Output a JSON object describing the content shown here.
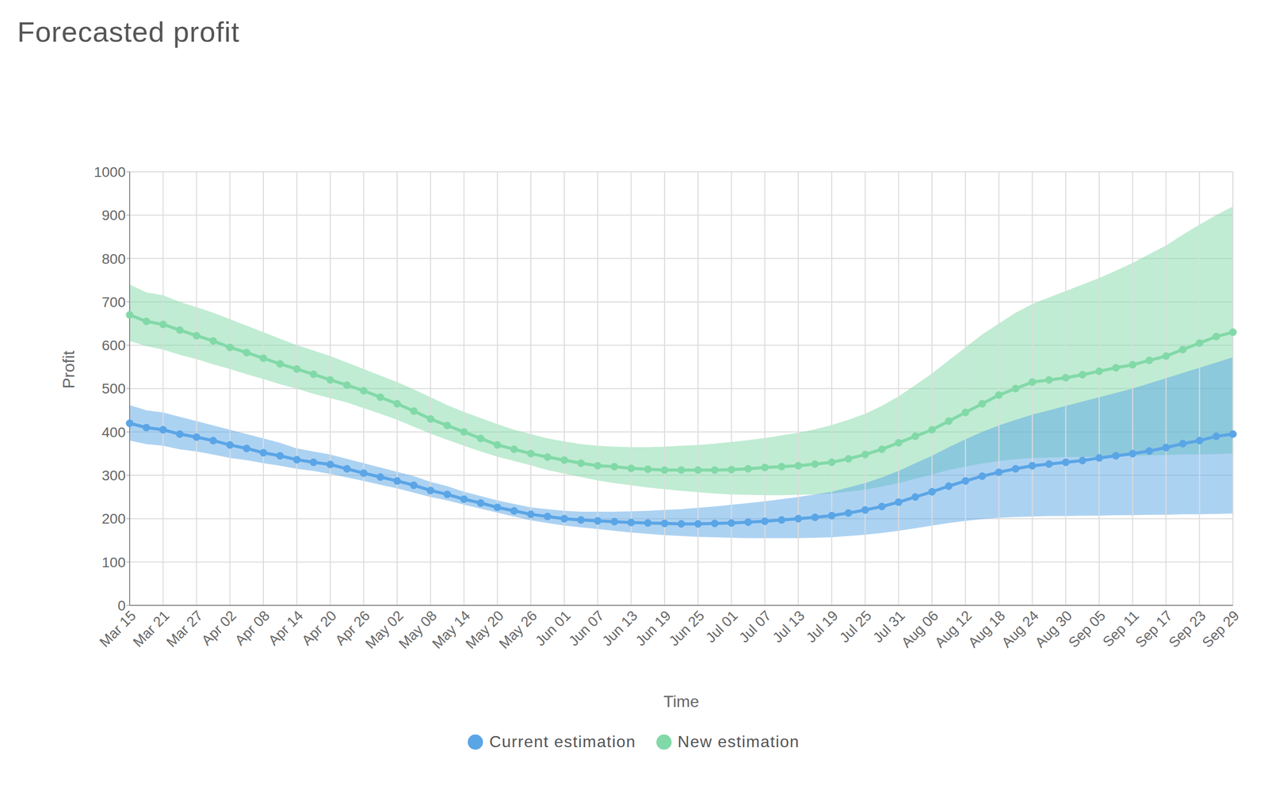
{
  "chart_data": {
    "type": "line",
    "title": "Forecasted profit",
    "x_label": "Time",
    "y_label": "Profit",
    "categories": [
      "Mar 15",
      null,
      "Mar 21",
      null,
      "Mar 27",
      null,
      "Apr 02",
      null,
      "Apr 08",
      null,
      "Apr 14",
      null,
      "Apr 20",
      null,
      "Apr 26",
      null,
      "May 02",
      null,
      "May 08",
      null,
      "May 14",
      null,
      "May 20",
      null,
      "May 26",
      null,
      "Jun 01",
      null,
      "Jun 07",
      null,
      "Jun 13",
      null,
      "Jun 19",
      null,
      "Jun 25",
      null,
      "Jul 01",
      null,
      "Jul 07",
      null,
      "Jul 13",
      null,
      "Jul 19",
      null,
      "Jul 25",
      null,
      "Jul 31",
      null,
      "Aug 06",
      null,
      "Aug 12",
      null,
      "Aug 18",
      null,
      "Aug 24",
      null,
      "Aug 30",
      null,
      "Sep 05",
      null,
      "Sep 11",
      null,
      "Sep 17",
      null,
      "Sep 23",
      null,
      "Sep 29"
    ],
    "series": [
      {
        "name": "Current estimation",
        "color": "#5aa5e6",
        "values": [
          420,
          410,
          405,
          395,
          388,
          380,
          370,
          362,
          352,
          345,
          336,
          330,
          325,
          315,
          305,
          296,
          287,
          277,
          265,
          256,
          245,
          236,
          226,
          218,
          210,
          205,
          200,
          197,
          195,
          193,
          191,
          190,
          189,
          188,
          188,
          189,
          190,
          192,
          194,
          197,
          200,
          203,
          207,
          213,
          220,
          228,
          238,
          250,
          262,
          275,
          287,
          298,
          307,
          315,
          322,
          326,
          330,
          334,
          340,
          345,
          350,
          356,
          364,
          373,
          380,
          390,
          395
        ],
        "lower": [
          380,
          372,
          368,
          360,
          355,
          348,
          340,
          335,
          328,
          322,
          315,
          310,
          303,
          295,
          287,
          278,
          270,
          260,
          250,
          242,
          232,
          223,
          214,
          205,
          196,
          190,
          184,
          180,
          176,
          172,
          168,
          165,
          162,
          160,
          158,
          157,
          156,
          155,
          155,
          155,
          155,
          156,
          157,
          160,
          163,
          167,
          172,
          178,
          184,
          190,
          195,
          199,
          202,
          204,
          205,
          206,
          206,
          207,
          207,
          208,
          208,
          209,
          209,
          210,
          210,
          211,
          212
        ],
        "upper": [
          462,
          450,
          445,
          435,
          425,
          415,
          405,
          395,
          385,
          375,
          362,
          355,
          348,
          338,
          328,
          318,
          308,
          298,
          285,
          275,
          262,
          252,
          242,
          234,
          226,
          222,
          218,
          216,
          216,
          216,
          217,
          218,
          220,
          222,
          225,
          228,
          232,
          236,
          240,
          245,
          250,
          256,
          262,
          272,
          282,
          295,
          310,
          328,
          345,
          365,
          383,
          400,
          415,
          428,
          440,
          450,
          460,
          470,
          480,
          490,
          500,
          512,
          524,
          536,
          548,
          560,
          572
        ]
      },
      {
        "name": "New estimation",
        "color": "#82d9a8",
        "values": [
          670,
          655,
          648,
          635,
          622,
          610,
          595,
          583,
          570,
          557,
          545,
          533,
          520,
          508,
          495,
          480,
          465,
          448,
          430,
          415,
          400,
          385,
          370,
          360,
          350,
          342,
          335,
          328,
          322,
          320,
          316,
          314,
          312,
          312,
          312,
          312,
          313,
          315,
          318,
          320,
          322,
          326,
          330,
          338,
          348,
          360,
          375,
          390,
          405,
          425,
          445,
          465,
          485,
          500,
          515,
          520,
          525,
          532,
          540,
          548,
          555,
          565,
          575,
          590,
          605,
          620,
          630
        ],
        "lower": [
          610,
          598,
          590,
          578,
          568,
          556,
          545,
          533,
          522,
          510,
          500,
          488,
          478,
          468,
          455,
          442,
          428,
          412,
          396,
          382,
          368,
          355,
          343,
          333,
          323,
          312,
          304,
          296,
          288,
          282,
          277,
          272,
          268,
          264,
          261,
          258,
          256,
          255,
          254,
          254,
          255,
          256,
          258,
          262,
          267,
          274,
          282,
          292,
          302,
          312,
          320,
          327,
          333,
          337,
          340,
          341,
          342,
          342,
          343,
          344,
          345,
          346,
          347,
          348,
          348,
          349,
          350
        ],
        "upper": [
          740,
          722,
          715,
          700,
          688,
          675,
          660,
          645,
          630,
          615,
          600,
          588,
          575,
          560,
          545,
          530,
          515,
          498,
          480,
          462,
          446,
          432,
          418,
          405,
          395,
          385,
          378,
          372,
          368,
          366,
          365,
          365,
          366,
          368,
          370,
          373,
          377,
          381,
          386,
          392,
          398,
          406,
          416,
          428,
          442,
          460,
          482,
          508,
          535,
          565,
          595,
          625,
          650,
          675,
          695,
          710,
          725,
          740,
          755,
          772,
          790,
          810,
          830,
          855,
          878,
          900,
          920
        ]
      }
    ],
    "ylim": [
      0,
      1000
    ],
    "yticks": [
      0,
      100,
      200,
      300,
      400,
      500,
      600,
      700,
      800,
      900,
      1000
    ],
    "grid": true,
    "legend": "bottom",
    "marker": "circle"
  }
}
